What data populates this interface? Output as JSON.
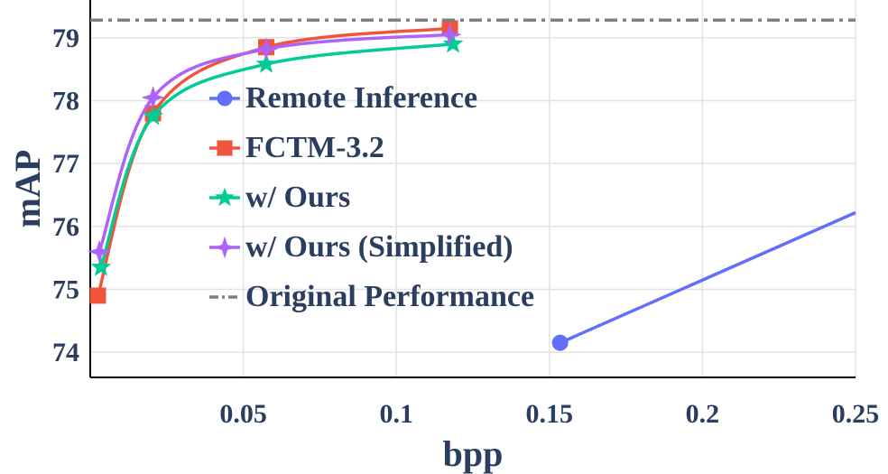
{
  "chart_data": {
    "type": "line",
    "xlabel": "bpp",
    "ylabel": "mAP",
    "xlim": [
      0.0,
      0.25
    ],
    "ylim": [
      73.6,
      79.6
    ],
    "xticks": [
      0.05,
      0.1,
      0.15,
      0.2,
      0.25
    ],
    "xtick_labels": [
      "0.05",
      "0.1",
      "0.15",
      "0.2",
      "0.25"
    ],
    "yticks": [
      74,
      75,
      76,
      77,
      78,
      79
    ],
    "ytick_labels": [
      "74",
      "75",
      "76",
      "77",
      "78",
      "79"
    ],
    "grid": true,
    "legend_position": "center-left",
    "series": [
      {
        "name": "Remote Inference",
        "color": "#636efa",
        "marker": "circle",
        "line": "solid",
        "x": [
          0.1535,
          0.25
        ],
        "y": [
          74.15,
          76.22
        ],
        "marker_count": 1
      },
      {
        "name": "FCTM-3.2",
        "color": "#ef553b",
        "marker": "square",
        "line": "solid",
        "x": [
          0.0025,
          0.0205,
          0.0575,
          0.1175
        ],
        "y": [
          74.9,
          77.8,
          78.85,
          79.15
        ],
        "marker_count": 4
      },
      {
        "name": "w/ Ours",
        "color": "#00cc96",
        "marker": "star",
        "line": "solid",
        "x": [
          0.0035,
          0.0205,
          0.0575,
          0.1185
        ],
        "y": [
          75.35,
          77.75,
          78.58,
          78.9
        ],
        "marker_count": 4
      },
      {
        "name": "w/ Ours (Simplified)",
        "color": "#ab63fa",
        "marker": "star4",
        "line": "solid",
        "x": [
          0.003,
          0.0205,
          0.0575,
          0.1175
        ],
        "y": [
          75.6,
          78.05,
          78.82,
          79.05
        ],
        "marker_count": 4
      },
      {
        "name": "Original Performance",
        "color": "#7f7f7f",
        "marker": "none",
        "line": "dashdot",
        "x": [
          0.0,
          0.25
        ],
        "y": [
          79.28,
          79.28
        ],
        "marker_count": 0
      }
    ]
  }
}
